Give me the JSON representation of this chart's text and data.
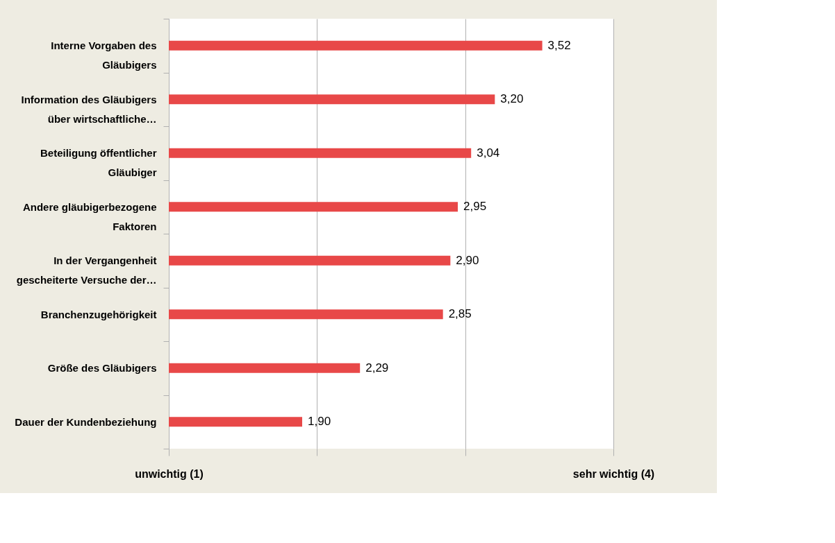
{
  "chart_data": {
    "type": "bar",
    "orientation": "horizontal",
    "categories": [
      "Interne Vorgaben des Gläubigers",
      "Information des Gläubigers über wirtschaftliche…",
      "Beteiligung öffentlicher Gläubiger",
      "Andere gläubigerbezogene Faktoren",
      "In der Vergangenheit gescheiterte Versuche der…",
      "Branchenzugehörigkeit",
      "Größe des Gläubigers",
      "Dauer der Kundenbeziehung"
    ],
    "values": [
      3.52,
      3.2,
      3.04,
      2.95,
      2.9,
      2.85,
      2.29,
      1.9
    ],
    "value_labels": [
      "3,52",
      "3,20",
      "3,04",
      "2,95",
      "2,90",
      "2,85",
      "2,29",
      "1,90"
    ],
    "color": "#e84848",
    "xlim": [
      1,
      4
    ],
    "xticks": [
      {
        "value": 1,
        "label": "unwichtig  (1)"
      },
      {
        "value": 2,
        "label": null
      },
      {
        "value": 3,
        "label": null
      },
      {
        "value": 4,
        "label": "sehr wichtig (4)"
      }
    ],
    "grid": "x"
  }
}
